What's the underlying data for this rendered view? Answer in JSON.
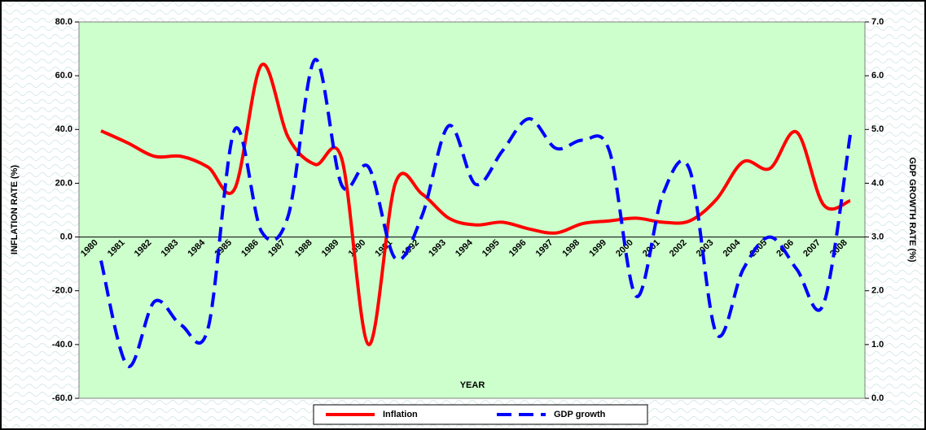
{
  "chart_data": {
    "type": "line",
    "x_label": "YEAR",
    "y_label": "INFLATION RATE (%)",
    "y2_label": "GDP GROWTH RATE (%)",
    "categories": [
      "1980",
      "1981",
      "1982",
      "1983",
      "1984",
      "1985",
      "1986",
      "1987",
      "1988",
      "1989",
      "1990",
      "1991",
      "1992",
      "1993",
      "1994",
      "1995",
      "1996",
      "1997",
      "1998",
      "1999",
      "2000",
      "2001",
      "2002",
      "2003",
      "2004",
      "2005",
      "2006",
      "2007",
      "2008"
    ],
    "series": [
      {
        "name": "Inflation",
        "color": "#ff0000",
        "dash": false,
        "values": [
          39.5,
          35,
          30,
          30,
          26,
          18,
          64,
          37,
          27,
          29,
          -40,
          20,
          16,
          7,
          4.5,
          5.5,
          3,
          1.5,
          5,
          6,
          7,
          5.5,
          6,
          14,
          28,
          25.5,
          39,
          12,
          13.5
        ]
      },
      {
        "name": "GDP growth",
        "color": "#0000ff",
        "dash": true,
        "axis": "y2",
        "values": [
          2.56,
          0.6,
          1.8,
          1.36,
          1.3,
          5.0,
          3.1,
          3.4,
          6.3,
          3.96,
          4.3,
          2.6,
          3.4,
          5.07,
          3.98,
          4.6,
          5.2,
          4.65,
          4.8,
          4.6,
          1.9,
          3.8,
          4.25,
          1.2,
          2.4,
          3.0,
          2.4,
          1.75,
          4.9
        ]
      }
    ],
    "ylim": [
      -60,
      80
    ],
    "yticks": [
      {
        "value": -60,
        "label": "-60.0"
      },
      {
        "value": -40,
        "label": "-40.0"
      },
      {
        "value": -20,
        "label": "-20.0"
      },
      {
        "value": 0,
        "label": "0.0"
      },
      {
        "value": 20,
        "label": "20.0"
      },
      {
        "value": 40,
        "label": "40.0"
      },
      {
        "value": 60,
        "label": "60.0"
      },
      {
        "value": 80,
        "label": "80.0"
      }
    ],
    "y2lim": [
      0,
      7
    ],
    "y2ticks": [
      {
        "value": 0,
        "label": "0.0"
      },
      {
        "value": 1,
        "label": "1.0"
      },
      {
        "value": 2,
        "label": "2.0"
      },
      {
        "value": 3,
        "label": "3.0"
      },
      {
        "value": 4,
        "label": "4.0"
      },
      {
        "value": 5,
        "label": "5.0"
      },
      {
        "value": 6,
        "label": "6.0"
      },
      {
        "value": 7,
        "label": "7.0"
      }
    ],
    "legend": "bottom",
    "plot_color": "#ccffcc"
  }
}
